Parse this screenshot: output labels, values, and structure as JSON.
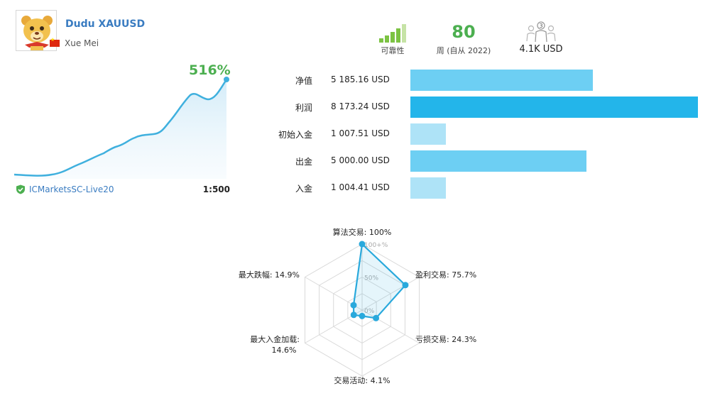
{
  "signal": {
    "name": "Dudu XAUUSD",
    "author": "Xue Mei"
  },
  "stats": {
    "reliability_label": "可靠性",
    "weeks_value": "80",
    "weeks_label": "周 (自从 2022)",
    "subscribers_count": "3",
    "subscribers_funds": "4.1K USD"
  },
  "growth": {
    "value": "516%",
    "broker": "ICMarketsSC-Live20",
    "leverage": "1:500",
    "line_color": "#3fb0de"
  },
  "metrics": [
    {
      "label": "净值",
      "value": "5 185.16 USD",
      "amount": 5185.16,
      "color": "#6dcff3"
    },
    {
      "label": "利润",
      "value": "8 173.24 USD",
      "amount": 8173.24,
      "color": "#23b5ea"
    },
    {
      "label": "初始入金",
      "value": "1 007.51 USD",
      "amount": 1007.51,
      "color": "#aee3f7"
    },
    {
      "label": "出金",
      "value": "5 000.00 USD",
      "amount": 5000.0,
      "color": "#6dcff3"
    },
    {
      "label": "入金",
      "value": "1 004.41 USD",
      "amount": 1004.41,
      "color": "#aee3f7"
    }
  ],
  "radar": {
    "scale_labels": [
      "0%",
      "50%",
      "100+%"
    ],
    "axes": [
      {
        "label": "算法交易: 100%",
        "value": 100
      },
      {
        "label": "盈利交易: 75.7%",
        "value": 75.7
      },
      {
        "label": "亏损交易: 24.3%",
        "value": 24.3
      },
      {
        "label": "交易活动: 4.1%",
        "value": 4.1
      },
      {
        "label": "最大入金加载:",
        "label2": "14.6%",
        "value": 14.6
      },
      {
        "label": "最大跌幅: 14.9%",
        "value": 14.9
      }
    ],
    "color": "#29a9dc"
  },
  "colors": {
    "accent_green": "#4caf50",
    "link_blue": "#3a7cc1"
  }
}
